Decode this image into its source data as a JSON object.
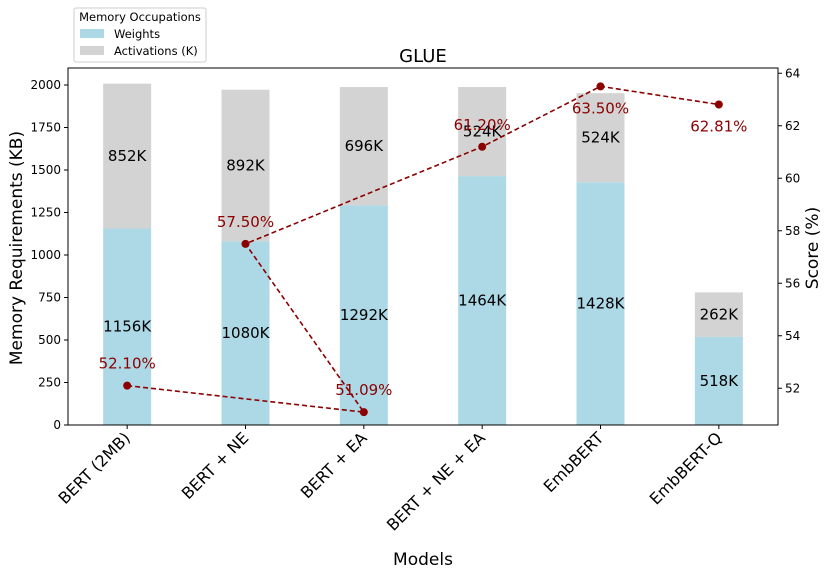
{
  "chart_data": {
    "type": "bar",
    "title": "GLUE",
    "xlabel": "Models",
    "ylabel": "Memory Requirements (KB)",
    "y2label": "Score (%)",
    "categories": [
      "BERT (2MB)",
      "BERT + NE",
      "BERT + EA",
      "BERT + NE + EA",
      "EmbBERT",
      "EmbBERT-Q"
    ],
    "stacked": true,
    "ylim": [
      0,
      2100
    ],
    "yticks": [
      0,
      250,
      500,
      750,
      1000,
      1250,
      1500,
      1750,
      2000
    ],
    "y2lim": [
      50.6,
      64.2
    ],
    "y2ticks": [
      52,
      54,
      56,
      58,
      60,
      62,
      64
    ],
    "legend": {
      "title": "Memory Occupations",
      "placement": "top-left (above plot)",
      "entries": [
        "Weights",
        "Activations (K)"
      ]
    },
    "series": [
      {
        "name": "Weights",
        "color": "#add8e6",
        "values": [
          1156,
          1080,
          1292,
          1464,
          1428,
          518
        ],
        "labels": [
          "1156K",
          "1080K",
          "1292K",
          "1464K",
          "1428K",
          "518K"
        ]
      },
      {
        "name": "Activations (K)",
        "color": "#d3d3d3",
        "values": [
          852,
          892,
          696,
          524,
          524,
          262
        ],
        "labels": [
          "852K",
          "892K",
          "696K",
          "524K",
          "524K",
          "262K"
        ]
      }
    ],
    "score_series": {
      "type": "line",
      "axis": "right",
      "color": "#8b0000",
      "style": "dashed",
      "order": [
        0,
        2,
        1,
        3,
        4,
        5
      ],
      "values": [
        52.1,
        57.5,
        51.09,
        61.2,
        63.5,
        62.81
      ],
      "labels": [
        "52.10%",
        "57.50%",
        "51.09%",
        "61.20%",
        "63.50%",
        "62.81%"
      ]
    }
  }
}
